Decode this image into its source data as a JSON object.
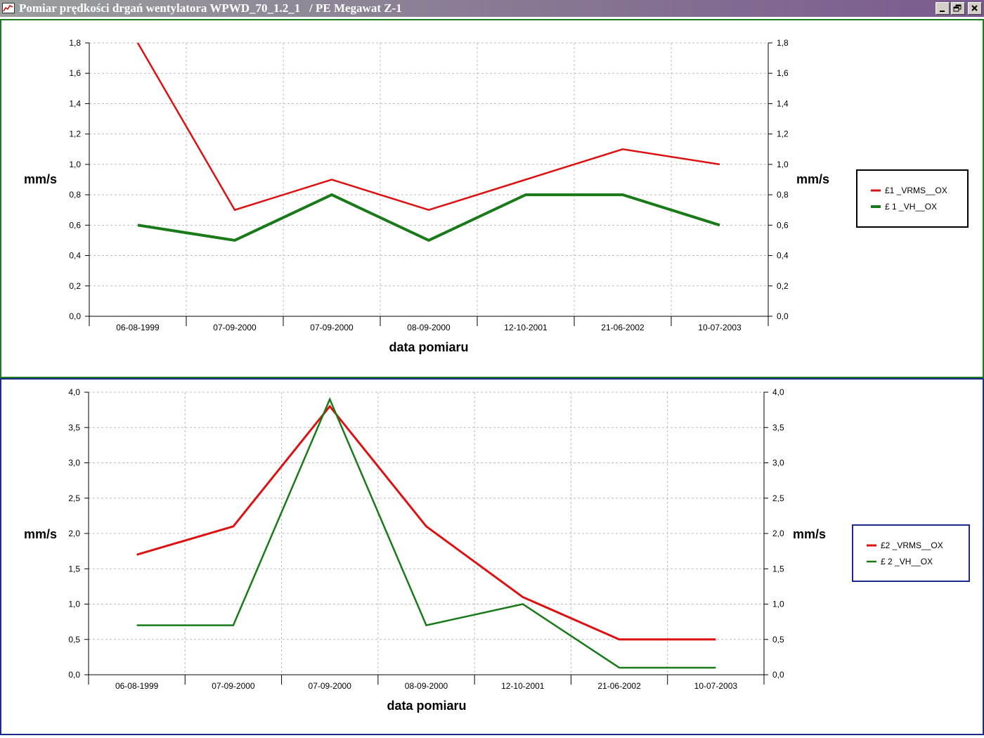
{
  "window": {
    "title": "Pomiar prędkości drgań wentylatora WPWD_70_1.2_1   / PE Megawat Z-1",
    "icon": "chart-app-icon",
    "controls": [
      "minimize-icon",
      "restore-icon",
      "close-icon"
    ]
  },
  "colors": {
    "red": "#dd1111",
    "green": "#1a7a1a",
    "panel1_border": "#1e7a1e",
    "panel2_border": "#1c2a8c"
  },
  "chart_data": [
    {
      "type": "line",
      "categories": [
        "06-08-1999",
        "07-09-2000",
        "07-09-2000",
        "08-09-2000",
        "12-10-2001",
        "21-06-2002",
        "10-07-2003"
      ],
      "series": [
        {
          "name": "£1 _VRMS__OX",
          "values": [
            1.8,
            0.7,
            0.9,
            0.7,
            0.9,
            1.1,
            1.0
          ]
        },
        {
          "name": "£ 1 _VH__OX",
          "values": [
            0.6,
            0.5,
            0.8,
            0.5,
            0.8,
            0.8,
            0.6
          ]
        }
      ],
      "yticks": [
        "0,0",
        "0,2",
        "0,4",
        "0,6",
        "0,8",
        "1,0",
        "1,2",
        "1,4",
        "1,6",
        "1,8"
      ],
      "ylim": [
        0,
        1.8
      ],
      "ylabel_left": "mm/s",
      "ylabel_right": "mm/s",
      "xlabel": "data pomiaru",
      "grid": true,
      "legend_position": "right"
    },
    {
      "type": "line",
      "categories": [
        "06-08-1999",
        "07-09-2000",
        "07-09-2000",
        "08-09-2000",
        "12-10-2001",
        "21-06-2002",
        "10-07-2003"
      ],
      "series": [
        {
          "name": "£2 _VRMS__OX",
          "values": [
            1.7,
            2.1,
            3.8,
            2.1,
            1.1,
            0.5,
            0.5
          ]
        },
        {
          "name": "£ 2 _VH__OX",
          "values": [
            0.7,
            0.7,
            3.9,
            0.7,
            1.0,
            0.1,
            0.1
          ]
        }
      ],
      "yticks": [
        "0,0",
        "0,5",
        "1,0",
        "1,5",
        "2,0",
        "2,5",
        "3,0",
        "3,5",
        "4,0"
      ],
      "ylim": [
        0,
        4.0
      ],
      "ylabel_left": "mm/s",
      "ylabel_right": "mm/s",
      "xlabel": "data pomiaru",
      "grid": true,
      "legend_position": "right"
    }
  ]
}
